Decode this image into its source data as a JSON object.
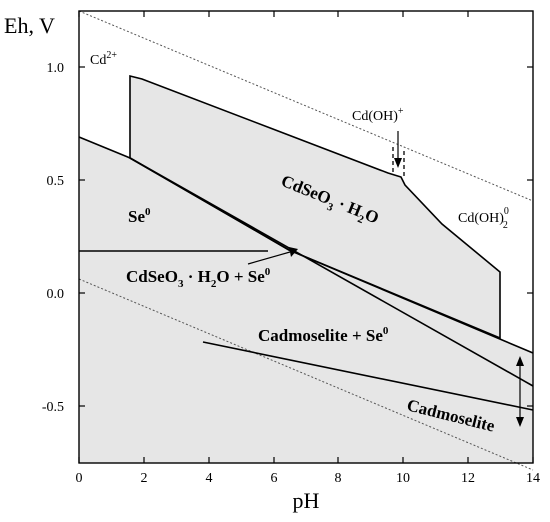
{
  "axes": {
    "x_label": "pH",
    "y_label": "Eh, V",
    "x_ticks": [
      "0",
      "2",
      "4",
      "6",
      "8",
      "10",
      "12",
      "14"
    ],
    "y_ticks": [
      "1.0",
      "0.5",
      "0.0",
      "-0.5"
    ]
  },
  "species": {
    "cd2": "Cd",
    "cd2_sup": "2+",
    "cdoh": "Cd(OH)",
    "cdoh_sup": "+",
    "cdoh2": "Cd(OH)",
    "cdoh2_sup": "0",
    "cdoh2_sub": "2"
  },
  "regions": {
    "se0": "Se",
    "se0_sup": "0",
    "cdseo3_a": "CdSeO",
    "cdseo3_sub": "3",
    "cdseo3_b": " · H",
    "cdseo3_sub2": "2",
    "cdseo3_c": "O",
    "mix_a": "CdSeO",
    "mix_sub": "3",
    "mix_b": " · H",
    "mix_sub2": "2",
    "mix_c": "O + Se",
    "mix_sup": "0",
    "cadmo_se_a": "Cadmoselite + Se",
    "cadmo_se_sup": "0",
    "cadmoselite": "Cadmoselite"
  }
}
